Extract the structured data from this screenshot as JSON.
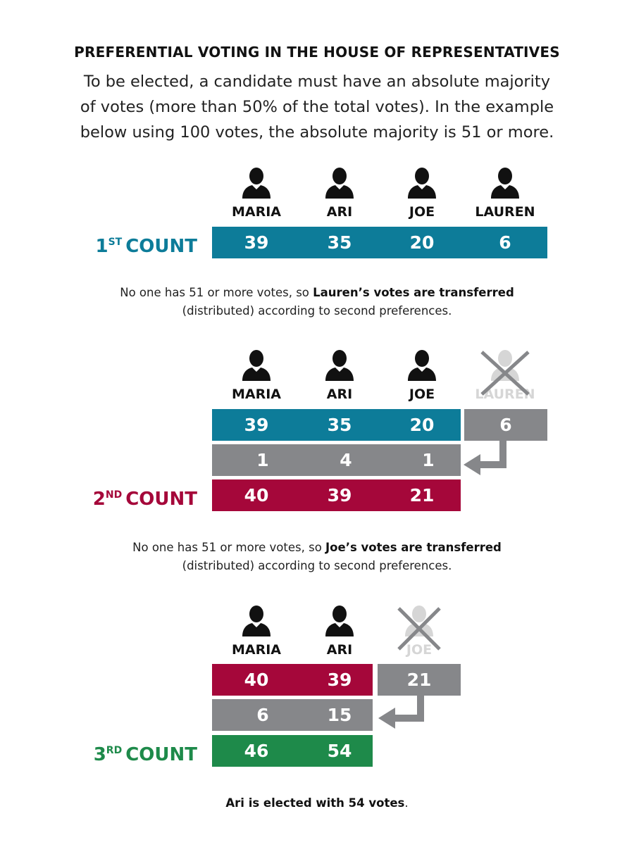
{
  "title": "PREFERENTIAL VOTING IN THE HOUSE OF REPRESENTATIVES",
  "intro": {
    "line1": "To be elected, a candidate must have an absolute majority",
    "line2": "of votes (more than 50% of the total votes). In the example",
    "line3": "below using 100 votes, the absolute majority is 51 or more."
  },
  "colors": {
    "teal": "#0d7c99",
    "crimson": "#a5073a",
    "grey": "#86878a",
    "green": "#1e8a4a",
    "faded": "#d6d6d6"
  },
  "count1": {
    "label": "COUNT",
    "ordinal": "1",
    "suffix": "ST",
    "candidates": [
      "MARIA",
      "ARI",
      "JOE",
      "LAUREN"
    ],
    "votes": [
      "39",
      "35",
      "20",
      "6"
    ]
  },
  "note1": {
    "prefix": "No one has 51 or more votes, so ",
    "bold": "Lauren’s votes are transferred",
    "line2": "(distributed) according to second preferences."
  },
  "count2": {
    "label": "COUNT",
    "ordinal": "2",
    "suffix": "ND",
    "candidates": [
      "MARIA",
      "ARI",
      "JOE"
    ],
    "eliminated": "LAUREN",
    "previous": [
      "39",
      "35",
      "20"
    ],
    "eliminated_votes": "6",
    "transferred": [
      "1",
      "4",
      "1"
    ],
    "totals": [
      "40",
      "39",
      "21"
    ]
  },
  "note2": {
    "prefix": "No one has 51 or more votes, so ",
    "bold": "Joe’s votes are transferred",
    "line2": "(distributed) according to second preferences."
  },
  "count3": {
    "label": "COUNT",
    "ordinal": "3",
    "suffix": "RD",
    "candidates": [
      "MARIA",
      "ARI"
    ],
    "eliminated": "JOE",
    "previous": [
      "40",
      "39"
    ],
    "eliminated_votes": "21",
    "transferred": [
      "6",
      "15"
    ],
    "totals": [
      "46",
      "54"
    ]
  },
  "result": {
    "bold": "Ari is elected with 54 votes",
    "tail": "."
  }
}
